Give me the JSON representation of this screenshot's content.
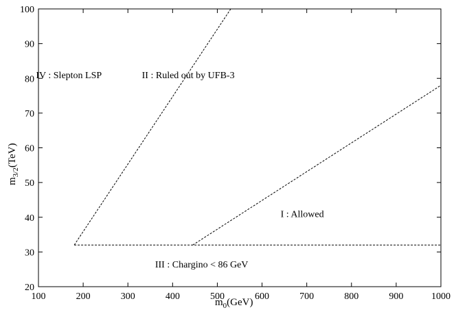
{
  "chart_data": {
    "type": "line",
    "xlabel": {
      "main": "m",
      "sub": "0",
      "unit": "(GeV)"
    },
    "ylabel": {
      "main": "m",
      "sub": "3/2",
      "unit": "(TeV)"
    },
    "xlim": [
      100,
      1000
    ],
    "ylim": [
      20,
      100
    ],
    "xticks": [
      100,
      200,
      300,
      400,
      500,
      600,
      700,
      800,
      900,
      1000
    ],
    "yticks": [
      20,
      30,
      40,
      50,
      60,
      70,
      80,
      90,
      100
    ],
    "grid": false,
    "series": [
      {
        "x": [
          180,
          530
        ],
        "y": [
          32,
          100
        ],
        "style": "dashed"
      },
      {
        "x": [
          180,
          1000
        ],
        "y": [
          32,
          32
        ],
        "style": "dashed"
      },
      {
        "x": [
          445,
          1000
        ],
        "y": [
          32,
          78
        ],
        "style": "dashed"
      }
    ],
    "annotations": [
      {
        "text": "IV : Slepton LSP",
        "x": 168,
        "y": 81
      },
      {
        "text": "II : Ruled out by UFB-3",
        "x": 435,
        "y": 81
      },
      {
        "text": "I : Allowed",
        "x": 690,
        "y": 41
      },
      {
        "text": "III : Chargino < 86 GeV",
        "x": 465,
        "y": 26.5
      }
    ]
  }
}
